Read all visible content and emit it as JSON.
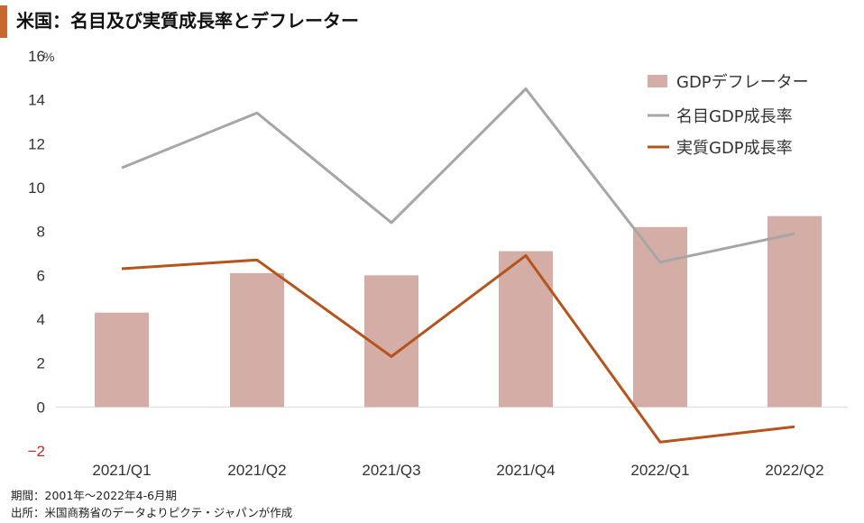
{
  "title": "米国：名目及び実質成長率とデフレーター",
  "footnotes": {
    "period": "期間：2001年～2022年4-6月期",
    "source": "出所：米国商務省のデータよりピクテ・ジャパンが作成"
  },
  "chart_data": {
    "type": "bar",
    "categories": [
      "2021/Q1",
      "2021/Q2",
      "2021/Q3",
      "2021/Q4",
      "2022/Q1",
      "2022/Q2"
    ],
    "y_unit": "%",
    "ylim": [
      -2,
      16
    ],
    "yticks": [
      -2,
      0,
      2,
      4,
      6,
      8,
      10,
      12,
      14,
      16
    ],
    "grid": false,
    "legend_position": "top-right",
    "series": [
      {
        "name": "GDPデフレーター",
        "type": "bar",
        "color": "#d4ada7",
        "values": [
          4.3,
          6.1,
          6.0,
          7.1,
          8.2,
          8.7
        ]
      },
      {
        "name": "名目GDP成長率",
        "type": "line",
        "color": "#a6a6a6",
        "values": [
          10.9,
          13.4,
          8.4,
          14.5,
          6.6,
          7.9
        ]
      },
      {
        "name": "実質GDP成長率",
        "type": "line",
        "color": "#b5541c",
        "values": [
          6.3,
          6.7,
          2.3,
          6.9,
          -1.6,
          -0.9
        ]
      }
    ],
    "negative_tick_color": "#c62828"
  }
}
